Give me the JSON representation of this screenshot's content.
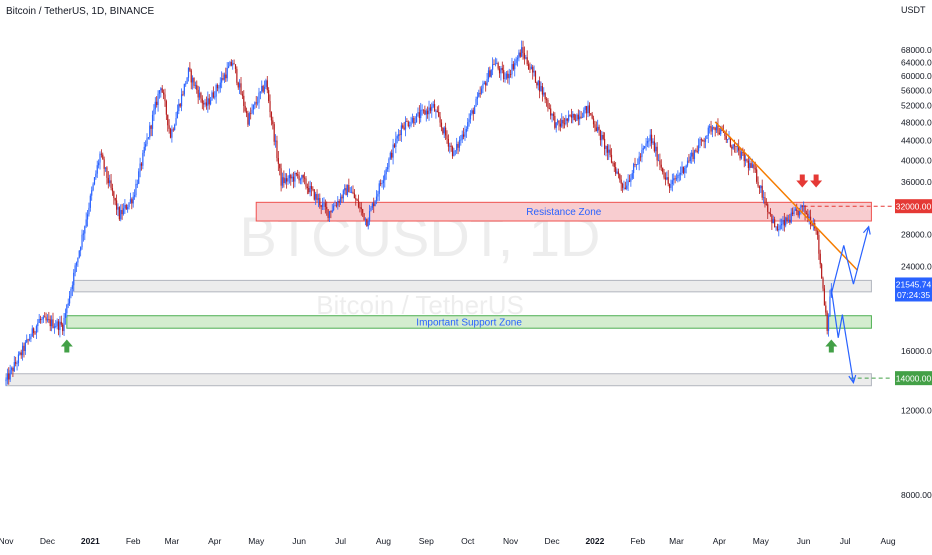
{
  "chart_data": {
    "type": "candlestick",
    "title": "Bitcoin / TetherUS, 1D, BINANCE",
    "watermark": "BTCUSDT, 1D",
    "watermark_sub": "Bitcoin / TetherUS",
    "currency": "USDT",
    "y_scale": "log",
    "ylim": [
      7500,
      75000
    ],
    "y_ticks": [
      {
        "value": 68000,
        "label": "68000.00"
      },
      {
        "value": 64000,
        "label": "64000.00"
      },
      {
        "value": 60000,
        "label": "60000.00"
      },
      {
        "value": 56000,
        "label": "56000.00"
      },
      {
        "value": 52000,
        "label": "52000.00"
      },
      {
        "value": 48000,
        "label": "48000.00"
      },
      {
        "value": 44000,
        "label": "44000.00"
      },
      {
        "value": 40000,
        "label": "40000.00"
      },
      {
        "value": 36000,
        "label": "36000.00"
      },
      {
        "value": 28000,
        "label": "28000.00"
      },
      {
        "value": 24000,
        "label": "24000.00"
      },
      {
        "value": 16000,
        "label": "16000.00"
      },
      {
        "value": 12000,
        "label": "12000.00"
      },
      {
        "value": 8000,
        "label": "8000.00"
      }
    ],
    "x_ticks": [
      {
        "date": "2020-11-01",
        "label": "Nov"
      },
      {
        "date": "2020-12-01",
        "label": "Dec"
      },
      {
        "date": "2021-01-01",
        "label": "2021"
      },
      {
        "date": "2021-02-01",
        "label": "Feb"
      },
      {
        "date": "2021-03-01",
        "label": "Mar"
      },
      {
        "date": "2021-04-01",
        "label": "Apr"
      },
      {
        "date": "2021-05-01",
        "label": "May"
      },
      {
        "date": "2021-06-01",
        "label": "Jun"
      },
      {
        "date": "2021-07-01",
        "label": "Jul"
      },
      {
        "date": "2021-08-01",
        "label": "Aug"
      },
      {
        "date": "2021-09-01",
        "label": "Sep"
      },
      {
        "date": "2021-10-01",
        "label": "Oct"
      },
      {
        "date": "2021-11-01",
        "label": "Nov"
      },
      {
        "date": "2021-12-01",
        "label": "Dec"
      },
      {
        "date": "2022-01-01",
        "label": "2022"
      },
      {
        "date": "2022-02-01",
        "label": "Feb"
      },
      {
        "date": "2022-03-01",
        "label": "Mar"
      },
      {
        "date": "2022-04-01",
        "label": "Apr"
      },
      {
        "date": "2022-05-01",
        "label": "May"
      },
      {
        "date": "2022-06-01",
        "label": "Jun"
      },
      {
        "date": "2022-07-01",
        "label": "Jul"
      },
      {
        "date": "2022-08-01",
        "label": "Aug"
      }
    ],
    "price_path": [
      {
        "date": "2020-11-01",
        "price": 13800
      },
      {
        "date": "2020-11-25",
        "price": 18500
      },
      {
        "date": "2020-12-12",
        "price": 18000
      },
      {
        "date": "2020-12-20",
        "price": 23000
      },
      {
        "date": "2021-01-08",
        "price": 41000
      },
      {
        "date": "2021-01-22",
        "price": 30500
      },
      {
        "date": "2021-02-01",
        "price": 33500
      },
      {
        "date": "2021-02-21",
        "price": 57500
      },
      {
        "date": "2021-02-28",
        "price": 45000
      },
      {
        "date": "2021-03-13",
        "price": 61000
      },
      {
        "date": "2021-03-25",
        "price": 51500
      },
      {
        "date": "2021-04-14",
        "price": 64000
      },
      {
        "date": "2021-04-25",
        "price": 48500
      },
      {
        "date": "2021-05-08",
        "price": 58000
      },
      {
        "date": "2021-05-19",
        "price": 36000
      },
      {
        "date": "2021-06-01",
        "price": 37000
      },
      {
        "date": "2021-06-22",
        "price": 31000
      },
      {
        "date": "2021-07-07",
        "price": 35000
      },
      {
        "date": "2021-07-20",
        "price": 29800
      },
      {
        "date": "2021-08-14",
        "price": 47000
      },
      {
        "date": "2021-09-06",
        "price": 51500
      },
      {
        "date": "2021-09-21",
        "price": 41000
      },
      {
        "date": "2021-10-20",
        "price": 64000
      },
      {
        "date": "2021-10-28",
        "price": 59000
      },
      {
        "date": "2021-11-09",
        "price": 67500
      },
      {
        "date": "2021-11-26",
        "price": 54000
      },
      {
        "date": "2021-12-04",
        "price": 47000
      },
      {
        "date": "2021-12-27",
        "price": 51000
      },
      {
        "date": "2022-01-22",
        "price": 35000
      },
      {
        "date": "2022-02-10",
        "price": 44500
      },
      {
        "date": "2022-02-24",
        "price": 35000
      },
      {
        "date": "2022-03-28",
        "price": 47500
      },
      {
        "date": "2022-04-26",
        "price": 38000
      },
      {
        "date": "2022-05-12",
        "price": 28500
      },
      {
        "date": "2022-05-31",
        "price": 31700
      },
      {
        "date": "2022-06-10",
        "price": 29000
      },
      {
        "date": "2022-06-18",
        "price": 18000
      },
      {
        "date": "2022-06-21",
        "price": 21545.74
      }
    ],
    "zones": [
      {
        "label": "Resistance Zone",
        "date_start": "2021-05-01",
        "date_end": "2022-07-20",
        "low": 29800,
        "high": 32600,
        "fill": "#f8cdd0",
        "stroke": "#ef5350",
        "text_color": "#2962ff"
      },
      {
        "label": "",
        "date_start": "2020-12-20",
        "date_end": "2022-07-20",
        "low": 21200,
        "high": 22400,
        "fill": "#ececec",
        "stroke": "#b2b5be"
      },
      {
        "label": "Important Support Zone",
        "date_start": "2020-12-15",
        "date_end": "2022-07-20",
        "low": 17800,
        "high": 18900,
        "fill": "#d4edcf",
        "stroke": "#4caf50",
        "text_color": "#2962ff"
      },
      {
        "label": "",
        "date_start": "2020-11-01",
        "date_end": "2022-07-20",
        "low": 13500,
        "high": 14300,
        "fill": "#ececec",
        "stroke": "#b2b5be"
      }
    ],
    "trendline": {
      "from": {
        "date": "2022-03-29",
        "price": 48000
      },
      "to": {
        "date": "2022-07-10",
        "price": 23500
      },
      "color": "#f57c00"
    },
    "horizontal_levels": [
      {
        "price": 32000,
        "label": "32000.00",
        "color": "#e53935",
        "date_start": "2022-06-01"
      },
      {
        "price": 14000,
        "label": "14000.00",
        "color": "#43a047",
        "date_start": "2022-07-05"
      }
    ],
    "current_price": {
      "price": 21545.74,
      "label": "21545.74",
      "countdown": "07:24:35",
      "color": "#2962ff"
    },
    "projections": [
      {
        "name": "bullish-path",
        "points": [
          {
            "date": "2022-06-21",
            "price": 21000
          },
          {
            "date": "2022-06-30",
            "price": 26500
          },
          {
            "date": "2022-07-07",
            "price": 22000
          },
          {
            "date": "2022-07-18",
            "price": 29000
          }
        ],
        "color": "#2962ff"
      },
      {
        "name": "bearish-path",
        "points": [
          {
            "date": "2022-06-21",
            "price": 21500
          },
          {
            "date": "2022-06-26",
            "price": 17000
          },
          {
            "date": "2022-06-29",
            "price": 19000
          },
          {
            "date": "2022-07-07",
            "price": 13700
          }
        ],
        "color": "#2962ff"
      }
    ],
    "arrows": [
      {
        "type": "up",
        "date": "2020-12-15",
        "price": 16300,
        "color": "#43a047"
      },
      {
        "type": "up",
        "date": "2022-06-21",
        "price": 16300,
        "color": "#43a047"
      },
      {
        "type": "down",
        "date": "2022-05-31",
        "price": 36200,
        "color": "#e53935"
      },
      {
        "type": "down",
        "date": "2022-06-10",
        "price": 36200,
        "color": "#e53935"
      }
    ],
    "colors": {
      "up": "#2962ff",
      "down": "#b71c1c"
    }
  }
}
